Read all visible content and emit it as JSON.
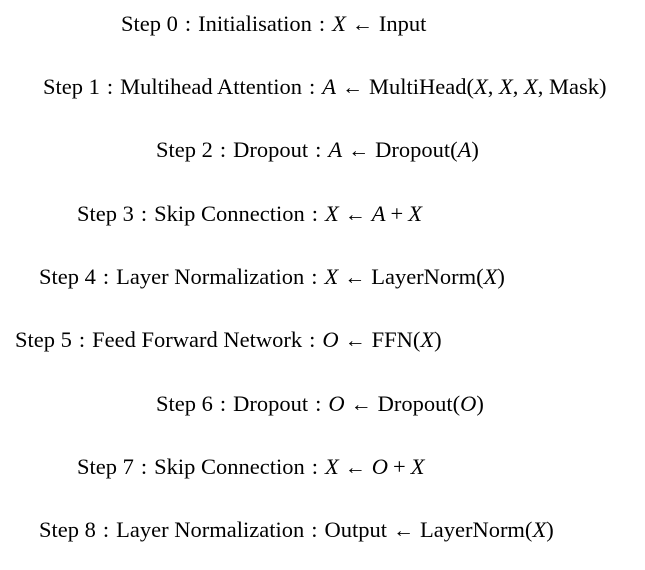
{
  "steps": [
    {
      "label": "Step 0",
      "name": "Initialisation",
      "lhs": "X",
      "arrow": "←",
      "rhs": [
        {
          "t": "Input",
          "k": "text"
        }
      ]
    },
    {
      "label": "Step 1",
      "name": "Multihead Attention",
      "lhs": "A",
      "arrow": "←",
      "rhs": [
        {
          "t": "MultiHead(",
          "k": "text"
        },
        {
          "t": "X",
          "k": "var"
        },
        {
          "t": ", ",
          "k": "text"
        },
        {
          "t": "X",
          "k": "var"
        },
        {
          "t": ", ",
          "k": "text"
        },
        {
          "t": "X",
          "k": "var"
        },
        {
          "t": ", Mask)",
          "k": "text"
        }
      ]
    },
    {
      "label": "Step 2",
      "name": "Dropout",
      "lhs": "A",
      "arrow": "←",
      "rhs": [
        {
          "t": "Dropout(",
          "k": "text"
        },
        {
          "t": "A",
          "k": "var"
        },
        {
          "t": ")",
          "k": "text"
        }
      ]
    },
    {
      "label": "Step 3",
      "name": "Skip Connection",
      "lhs": "X",
      "arrow": "←",
      "rhs": [
        {
          "t": "A",
          "k": "var"
        },
        {
          "t": "+",
          "k": "op"
        },
        {
          "t": "X",
          "k": "var"
        }
      ]
    },
    {
      "label": "Step 4",
      "name": "Layer Normalization",
      "lhs": "X",
      "arrow": "←",
      "rhs": [
        {
          "t": "LayerNorm(",
          "k": "text"
        },
        {
          "t": "X",
          "k": "var"
        },
        {
          "t": ")",
          "k": "text"
        }
      ]
    },
    {
      "label": "Step 5",
      "name": "Feed Forward Network",
      "lhs": "O",
      "arrow": "←",
      "rhs": [
        {
          "t": "FFN(",
          "k": "text"
        },
        {
          "t": "X",
          "k": "var"
        },
        {
          "t": ")",
          "k": "text"
        }
      ]
    },
    {
      "label": "Step 6",
      "name": "Dropout",
      "lhs": "O",
      "arrow": "←",
      "rhs": [
        {
          "t": "Dropout(",
          "k": "text"
        },
        {
          "t": "O",
          "k": "var"
        },
        {
          "t": ")",
          "k": "text"
        }
      ]
    },
    {
      "label": "Step 7",
      "name": "Skip Connection",
      "lhs": "X",
      "arrow": "←",
      "rhs": [
        {
          "t": "O",
          "k": "var"
        },
        {
          "t": "+",
          "k": "op"
        },
        {
          "t": "X",
          "k": "var"
        }
      ]
    },
    {
      "label": "Step 8",
      "name": "Layer Normalization",
      "lhs": "Output",
      "lhs_kind": "text",
      "arrow": "←",
      "rhs": [
        {
          "t": "LayerNorm(",
          "k": "text"
        },
        {
          "t": "X",
          "k": "var"
        },
        {
          "t": ")",
          "k": "text"
        }
      ]
    }
  ]
}
